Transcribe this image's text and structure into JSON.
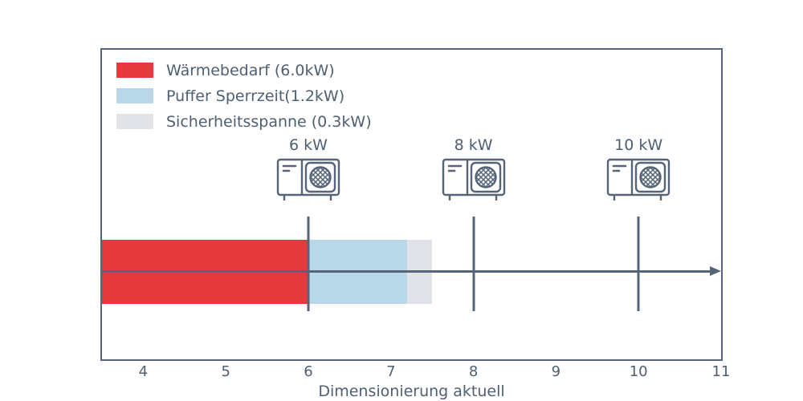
{
  "chart_data": {
    "type": "bar",
    "orientation": "horizontal-stacked",
    "xlabel": "Dimensionierung aktuell",
    "xlim": [
      3.5,
      11.0
    ],
    "xticks": [
      4,
      5,
      6,
      7,
      8,
      9,
      10,
      11
    ],
    "grid": false,
    "legend_position": "upper-left-inside",
    "bar": {
      "segments": [
        {
          "name": "Wärmebedarf",
          "value_kw": 6.0,
          "from": 3.5,
          "to": 6.0,
          "color": "#e5393e"
        },
        {
          "name": "Puffer Sperrzeit",
          "value_kw": 1.2,
          "from": 6.0,
          "to": 7.2,
          "color": "#b8d7e9"
        },
        {
          "name": "Sicherheitsspanne",
          "value_kw": 0.3,
          "from": 7.2,
          "to": 7.5,
          "color": "#e2e3e9"
        }
      ]
    },
    "markers": [
      {
        "kw": 6,
        "label": "6 kW"
      },
      {
        "kw": 8,
        "label": "8 kW"
      },
      {
        "kw": 10,
        "label": "10 kW"
      }
    ],
    "legend": [
      {
        "label": "Wärmebedarf (6.0kW)",
        "color": "#e5393e"
      },
      {
        "label": "Puffer Sperrzeit(1.2kW)",
        "color": "#b8d7e9"
      },
      {
        "label": "Sicherheitsspanne (0.3kW)",
        "color": "#e2e3e9"
      }
    ],
    "colors": {
      "axis": "#556477",
      "text": "#4e5f72"
    }
  }
}
